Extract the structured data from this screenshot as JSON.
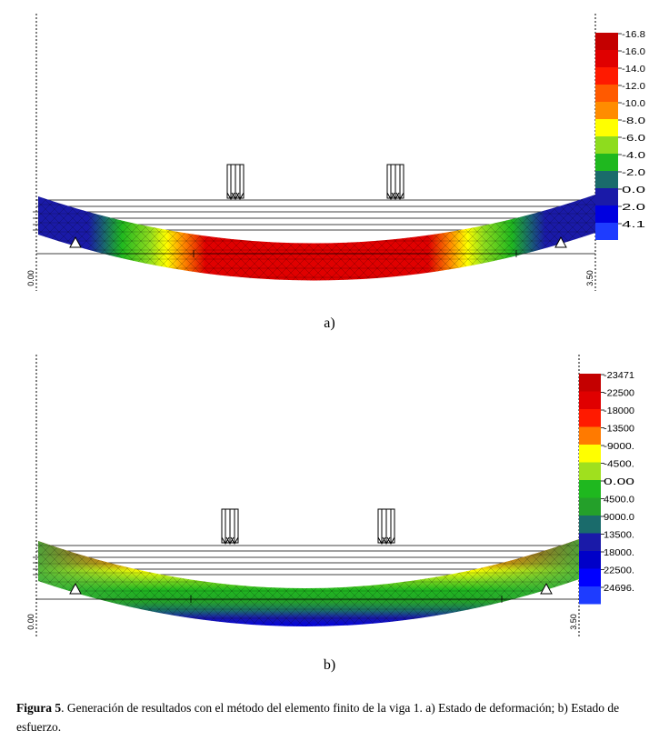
{
  "figure": {
    "label": "Figura 5",
    "caption_text": ". Generación de resultados con el método del elemento finito de la viga 1. a) Estado de deformación; b) Estado de esfuerzo."
  },
  "panel_a": {
    "sublabel": "a)",
    "axis_start": "0.00",
    "axis_end": "3.50",
    "legend": [
      {
        "label": "-16.8",
        "color": "#c40000"
      },
      {
        "label": "-16.0",
        "color": "#e00000"
      },
      {
        "label": "-14.0",
        "color": "#ff1a00"
      },
      {
        "label": "-12.0",
        "color": "#ff5a00"
      },
      {
        "label": "-10.0",
        "color": "#ff8c00"
      },
      {
        "label": "-8.0",
        "color": "#ffff00"
      },
      {
        "label": "-6.0",
        "color": "#8edc1e"
      },
      {
        "label": "-4.0",
        "color": "#1fb81f"
      },
      {
        "label": "-2.0",
        "color": "#1a6b6b"
      },
      {
        "label": "0.0",
        "color": "#1a1aa8"
      },
      {
        "label": "2.0",
        "color": "#0000e0"
      },
      {
        "label": "4.1",
        "color": "#1e3cff"
      }
    ]
  },
  "panel_b": {
    "sublabel": "b)",
    "axis_start": "0.00",
    "axis_end": "3.50",
    "legend": [
      {
        "label": "-23471",
        "color": "#c40000"
      },
      {
        "label": "-22500",
        "color": "#e00000"
      },
      {
        "label": "-18000",
        "color": "#ff1a00"
      },
      {
        "label": "-13500",
        "color": "#ff7a00"
      },
      {
        "label": "-9000.",
        "color": "#ffff00"
      },
      {
        "label": "-4500.",
        "color": "#a0e01e"
      },
      {
        "label": "0.00",
        "color": "#1fb81f"
      },
      {
        "label": "4500.0",
        "color": "#24a02a"
      },
      {
        "label": "9000.0",
        "color": "#1a6b6b"
      },
      {
        "label": "13500.",
        "color": "#1a1aa8"
      },
      {
        "label": "18000.",
        "color": "#0000c8"
      },
      {
        "label": "22500.",
        "color": "#0000ff"
      },
      {
        "label": "24696.",
        "color": "#1e3cff"
      }
    ]
  }
}
